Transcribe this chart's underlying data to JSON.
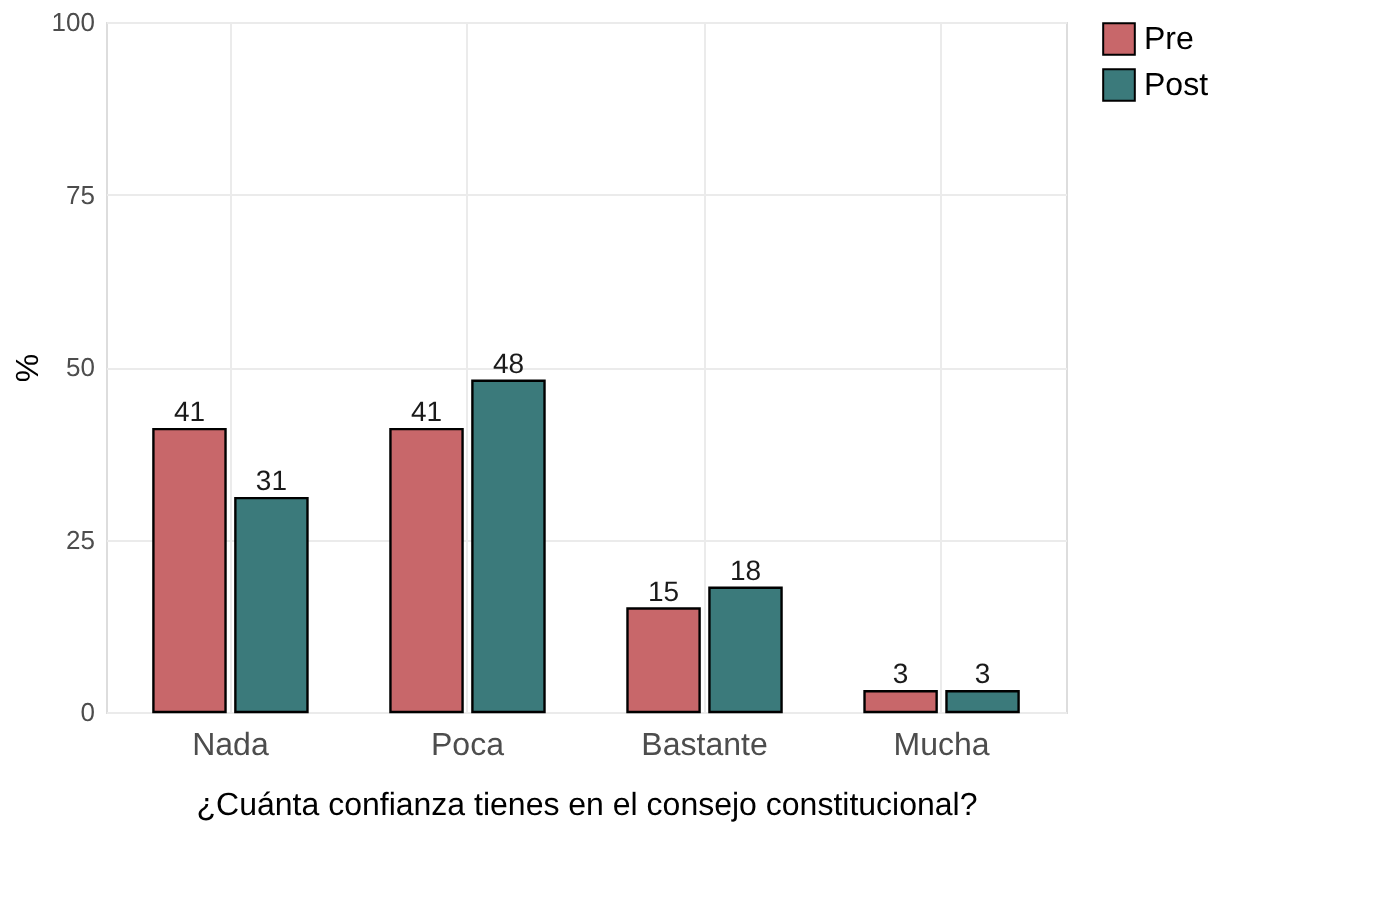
{
  "chart_data": {
    "type": "bar",
    "xlabel": "¿Cuánta confianza tienes en el consejo constitucional?",
    "ylabel": "%",
    "categories": [
      "Nada",
      "Poca",
      "Bastante",
      "Mucha"
    ],
    "series": [
      {
        "name": "Pre",
        "color": "#c8676a",
        "values": [
          41,
          41,
          15,
          3
        ]
      },
      {
        "name": "Post",
        "color": "#3b7a7b",
        "values": [
          31,
          48,
          18,
          3
        ]
      }
    ],
    "ylim": [
      0,
      100
    ],
    "yticks": [
      0,
      25,
      50,
      75,
      100
    ],
    "grid": true,
    "legend": "right",
    "data_labels": true
  }
}
